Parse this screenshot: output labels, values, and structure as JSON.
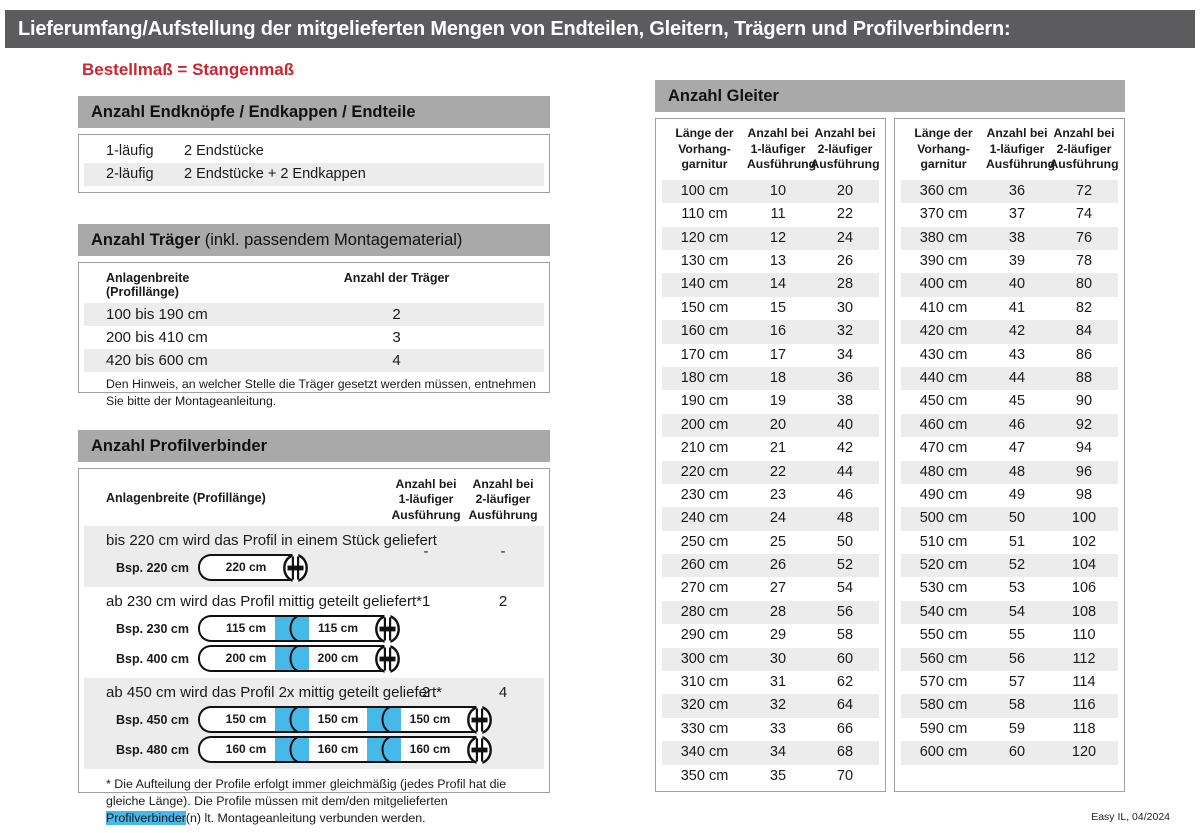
{
  "page": {
    "title": "Lieferumfang/Aufstellung der mitgelieferten Mengen von Endteilen, Gleitern, Trägern und Profilverbindern:",
    "subtitle": "Bestellmaß = Stangenmaß",
    "footer": "Easy IL, 04/2024"
  },
  "colors": {
    "title_bar": "#5c5c5e",
    "section_bar": "#a9a9a9",
    "row_stripe": "#ececec",
    "accent_red": "#d2232e",
    "connector_blue": "#47b9e8"
  },
  "endteile": {
    "heading": "Anzahl Endknöpfe / Endkappen / Endteile",
    "rows": [
      {
        "label": "1-läufig",
        "value": "2 Endstücke"
      },
      {
        "label": "2-läufig",
        "value": "2 Endstücke + 2 Endkappen"
      }
    ]
  },
  "traeger": {
    "heading_bold": "Anzahl Träger",
    "heading_rest": " (inkl. passendem Montagematerial)",
    "col1": "Anlagenbreite (Profillänge)",
    "col2": "Anzahl der Träger",
    "rows": [
      [
        "100 bis 190 cm",
        "2"
      ],
      [
        "200 bis 410 cm",
        "3"
      ],
      [
        "420 bis 600 cm",
        "4"
      ]
    ],
    "note": "Den Hinweis, an welcher Stelle die Träger gesetzt werden müssen, entnehmen Sie bitte der Montageanleitung."
  },
  "profilverbinder": {
    "heading": "Anzahl Profilverbinder",
    "col_label": "Anlagenbreite (Profillänge)",
    "col1": "Anzahl bei\n1-läufiger\nAusführung",
    "col2": "Anzahl bei\n2-läufiger\nAusführung",
    "rows": [
      {
        "text": "bis 220 cm wird das Profil in einem Stück geliefert",
        "v1": "-",
        "v2": "-",
        "examples": [
          {
            "label": "Bsp. 220 cm",
            "segments": [
              "220 cm"
            ]
          }
        ]
      },
      {
        "text": "ab 230 cm wird das Profil mittig geteilt geliefert*",
        "v1": "1",
        "v2": "2",
        "examples": [
          {
            "label": "Bsp. 230 cm",
            "segments": [
              "115 cm",
              "115 cm"
            ]
          },
          {
            "label": "Bsp. 400 cm",
            "segments": [
              "200 cm",
              "200 cm"
            ]
          }
        ]
      },
      {
        "text": "ab 450 cm wird das Profil 2x mittig geteilt geliefert*",
        "v1": "2",
        "v2": "4",
        "examples": [
          {
            "label": "Bsp. 450 cm",
            "segments": [
              "150 cm",
              "150 cm",
              "150 cm"
            ]
          },
          {
            "label": "Bsp. 480 cm",
            "segments": [
              "160 cm",
              "160 cm",
              "160 cm"
            ]
          }
        ]
      }
    ],
    "footnote_pre": "* Die Aufteilung der Profile erfolgt immer gleichmäßig (jedes Profil hat die gleiche Länge). Die Profile müssen mit dem/den mitgelieferten ",
    "footnote_highlight": "Profilverbinder",
    "footnote_post": "(n) lt. Montageanleitung verbunden werden."
  },
  "gleiter": {
    "heading": "Anzahl Gleiter",
    "col_headers": [
      "Länge der\nVorhang-\ngarnitur",
      "Anzahl bei\n1-läufiger\nAusführung",
      "Anzahl bei\n2-läufiger\nAusführung"
    ],
    "table_left": [
      [
        "100 cm",
        "10",
        "20"
      ],
      [
        "110 cm",
        "11",
        "22"
      ],
      [
        "120 cm",
        "12",
        "24"
      ],
      [
        "130 cm",
        "13",
        "26"
      ],
      [
        "140 cm",
        "14",
        "28"
      ],
      [
        "150 cm",
        "15",
        "30"
      ],
      [
        "160 cm",
        "16",
        "32"
      ],
      [
        "170 cm",
        "17",
        "34"
      ],
      [
        "180 cm",
        "18",
        "36"
      ],
      [
        "190 cm",
        "19",
        "38"
      ],
      [
        "200 cm",
        "20",
        "40"
      ],
      [
        "210 cm",
        "21",
        "42"
      ],
      [
        "220 cm",
        "22",
        "44"
      ],
      [
        "230 cm",
        "23",
        "46"
      ],
      [
        "240 cm",
        "24",
        "48"
      ],
      [
        "250 cm",
        "25",
        "50"
      ],
      [
        "260 cm",
        "26",
        "52"
      ],
      [
        "270 cm",
        "27",
        "54"
      ],
      [
        "280 cm",
        "28",
        "56"
      ],
      [
        "290 cm",
        "29",
        "58"
      ],
      [
        "300 cm",
        "30",
        "60"
      ],
      [
        "310 cm",
        "31",
        "62"
      ],
      [
        "320 cm",
        "32",
        "64"
      ],
      [
        "330 cm",
        "33",
        "66"
      ],
      [
        "340 cm",
        "34",
        "68"
      ],
      [
        "350 cm",
        "35",
        "70"
      ]
    ],
    "table_right": [
      [
        "360 cm",
        "36",
        "72"
      ],
      [
        "370 cm",
        "37",
        "74"
      ],
      [
        "380 cm",
        "38",
        "76"
      ],
      [
        "390 cm",
        "39",
        "78"
      ],
      [
        "400 cm",
        "40",
        "80"
      ],
      [
        "410 cm",
        "41",
        "82"
      ],
      [
        "420 cm",
        "42",
        "84"
      ],
      [
        "430 cm",
        "43",
        "86"
      ],
      [
        "440 cm",
        "44",
        "88"
      ],
      [
        "450 cm",
        "45",
        "90"
      ],
      [
        "460 cm",
        "46",
        "92"
      ],
      [
        "470 cm",
        "47",
        "94"
      ],
      [
        "480 cm",
        "48",
        "96"
      ],
      [
        "490 cm",
        "49",
        "98"
      ],
      [
        "500 cm",
        "50",
        "100"
      ],
      [
        "510 cm",
        "51",
        "102"
      ],
      [
        "520 cm",
        "52",
        "104"
      ],
      [
        "530 cm",
        "53",
        "106"
      ],
      [
        "540 cm",
        "54",
        "108"
      ],
      [
        "550 cm",
        "55",
        "110"
      ],
      [
        "560 cm",
        "56",
        "112"
      ],
      [
        "570 cm",
        "57",
        "114"
      ],
      [
        "580 cm",
        "58",
        "116"
      ],
      [
        "590 cm",
        "59",
        "118"
      ],
      [
        "600 cm",
        "60",
        "120"
      ]
    ]
  }
}
